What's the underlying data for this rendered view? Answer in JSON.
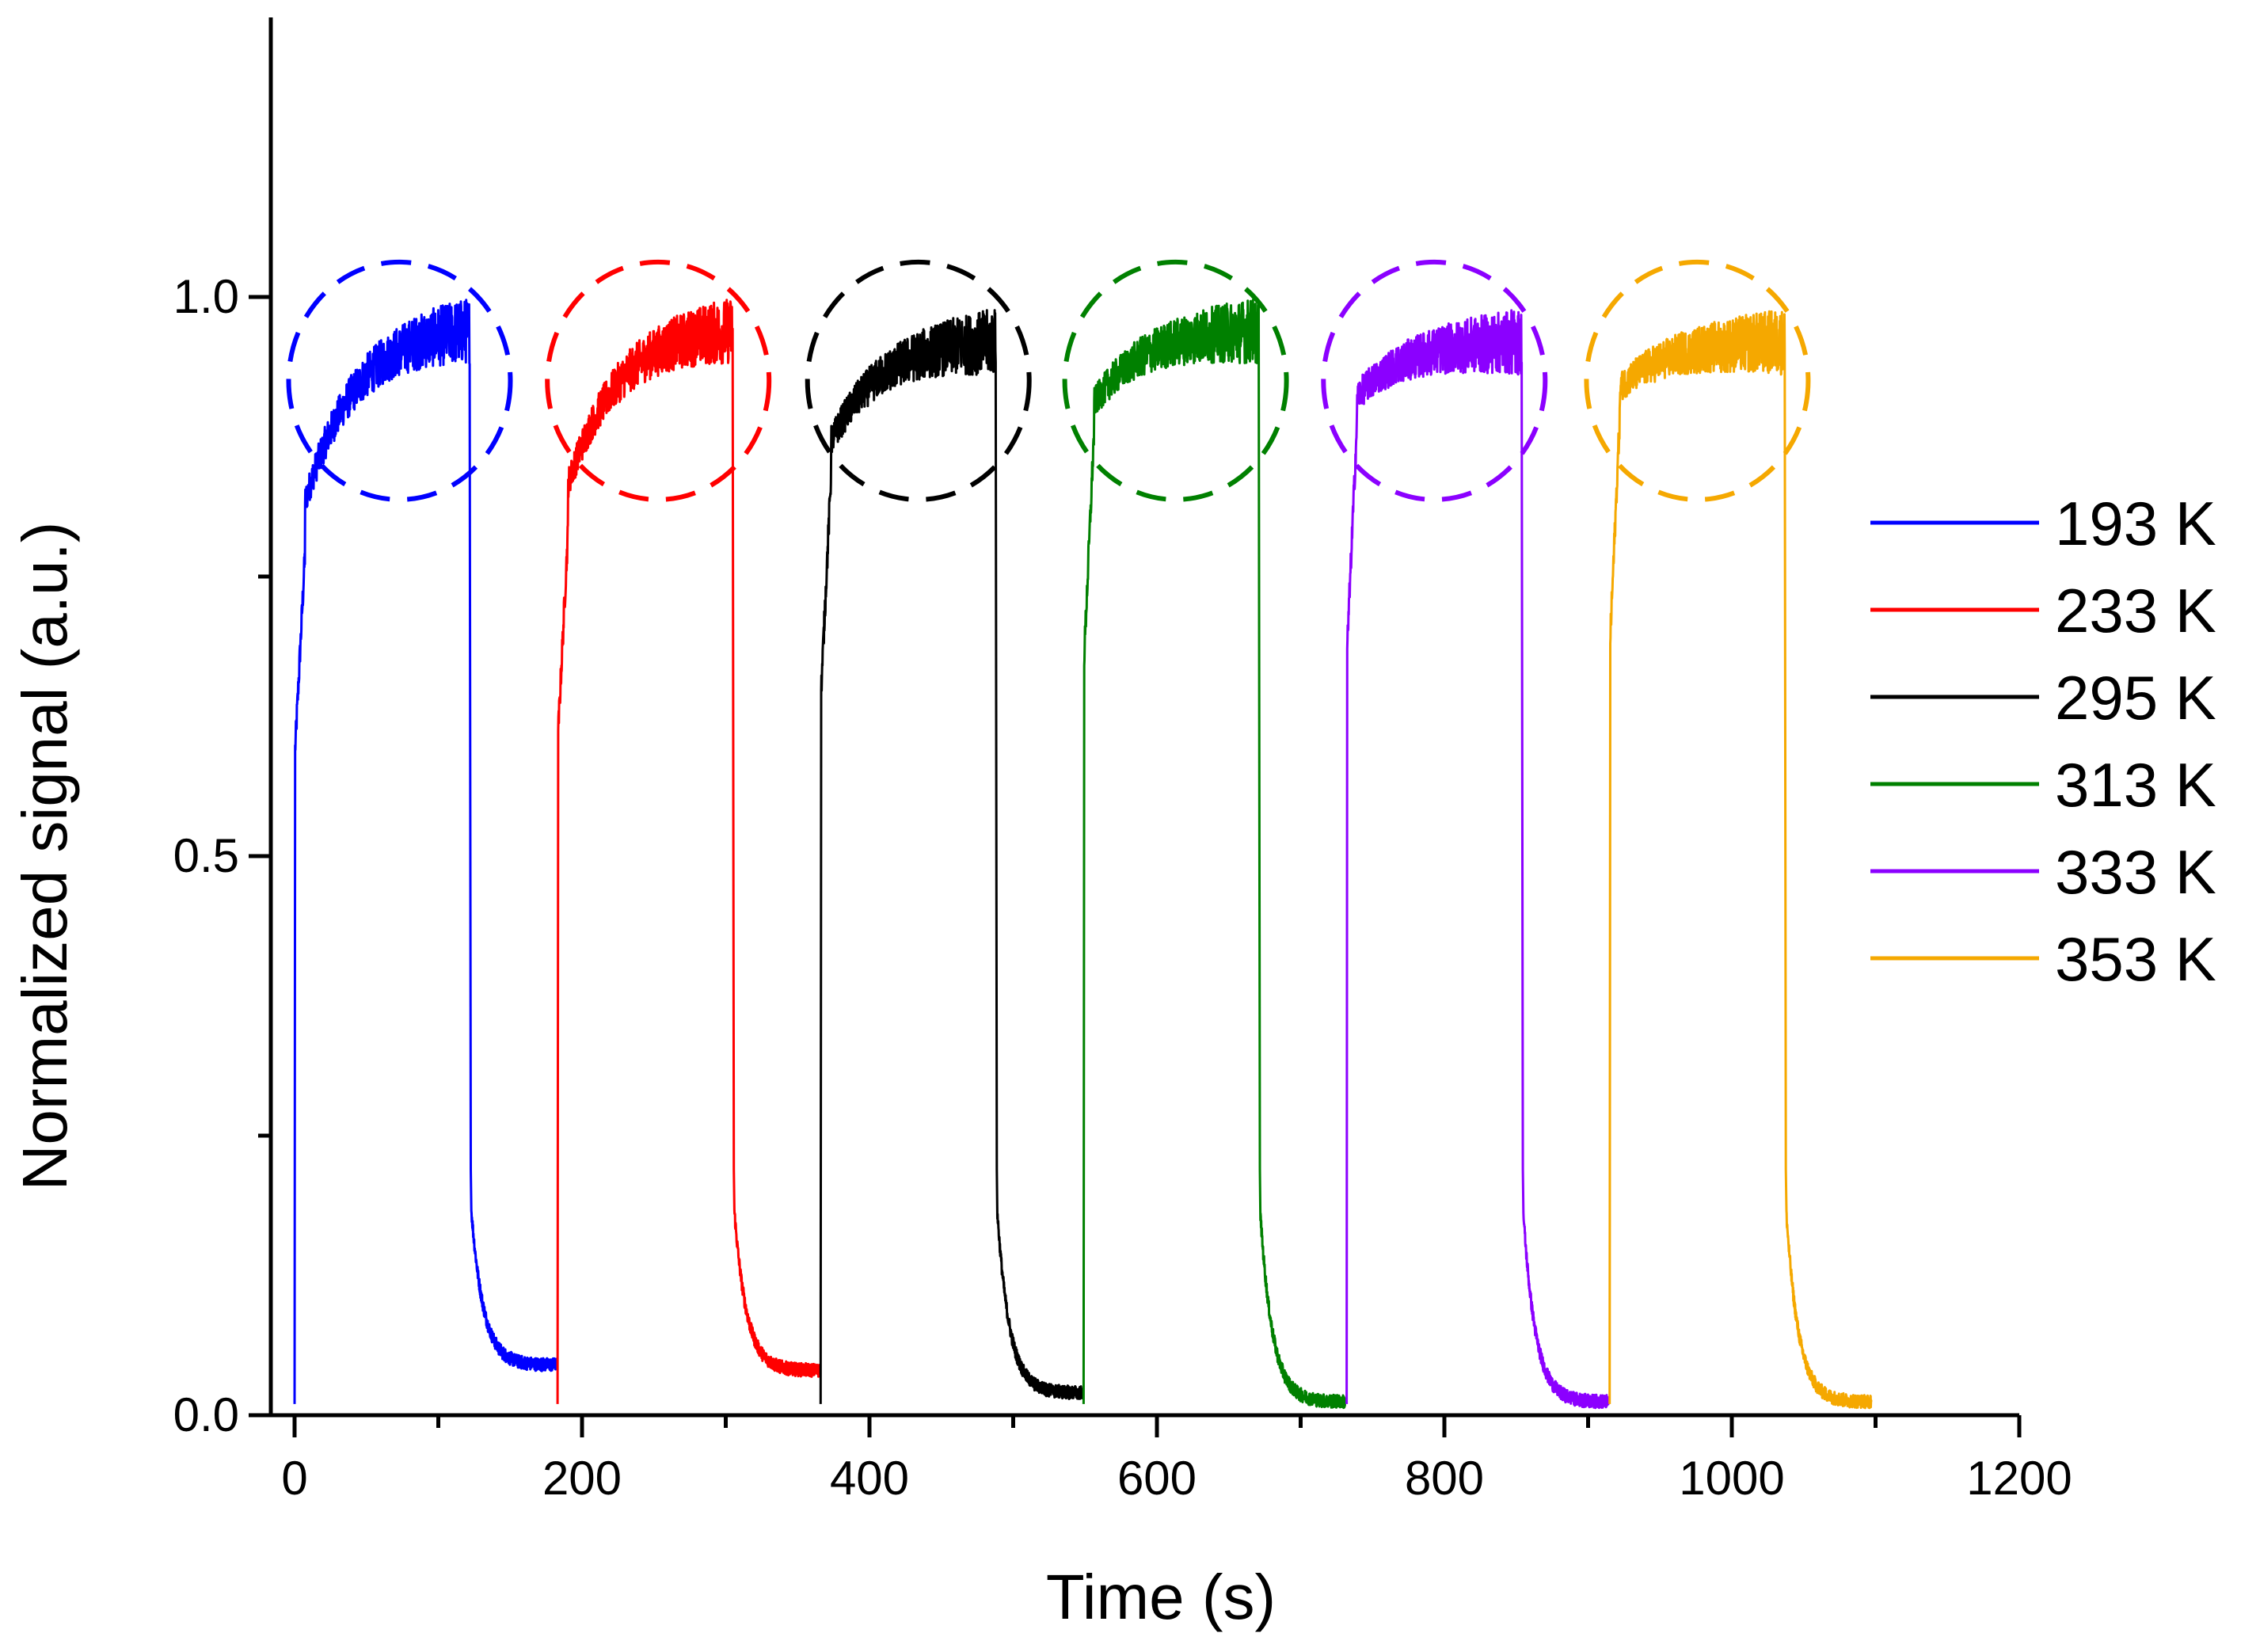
{
  "chart_data": {
    "type": "line",
    "title": "",
    "xlabel": "Time (s)",
    "ylabel": "Normalized signal (a.u.)",
    "xlim": [
      -15,
      1200
    ],
    "ylim": [
      0,
      1.26
    ],
    "x_ticks": [
      0,
      200,
      400,
      600,
      800,
      1000,
      1200
    ],
    "x_tick_labels": [
      "0",
      "200",
      "400",
      "600",
      "800",
      "1000",
      "1200"
    ],
    "x_minor_ticks": [
      100,
      300,
      500,
      700,
      900,
      1100
    ],
    "y_ticks": [
      0.0,
      0.5,
      1.0
    ],
    "y_tick_labels": [
      "0.0",
      "0.5",
      "1.0"
    ],
    "y_minor_ticks": [
      0.25,
      0.75
    ],
    "legend_position": "right",
    "series": [
      {
        "name": "193 K",
        "color": "#0000ff",
        "on_time": 0,
        "off_time": 122,
        "end_time": 182,
        "rise_start": 0.78,
        "plateau_end": 0.97,
        "tail_end": 0.045,
        "circle_center": [
          73,
          0.925
        ]
      },
      {
        "name": "233 K",
        "color": "#ff0000",
        "on_time": 183,
        "off_time": 305,
        "end_time": 365,
        "rise_start": 0.8,
        "plateau_end": 0.97,
        "tail_end": 0.04,
        "circle_center": [
          253,
          0.925
        ]
      },
      {
        "name": "295 K",
        "color": "#000000",
        "on_time": 366,
        "off_time": 488,
        "end_time": 548,
        "rise_start": 0.85,
        "plateau_end": 0.96,
        "tail_end": 0.02,
        "circle_center": [
          434,
          0.925
        ]
      },
      {
        "name": "313 K",
        "color": "#008000",
        "on_time": 549,
        "off_time": 671,
        "end_time": 731,
        "rise_start": 0.89,
        "plateau_end": 0.97,
        "tail_end": 0.012,
        "circle_center": [
          613,
          0.925
        ]
      },
      {
        "name": "333 K",
        "color": "#8b00ff",
        "on_time": 732,
        "off_time": 854,
        "end_time": 914,
        "rise_start": 0.9,
        "plateau_end": 0.96,
        "tail_end": 0.012,
        "circle_center": [
          793,
          0.925
        ]
      },
      {
        "name": "353 K",
        "color": "#f5a800",
        "on_time": 915,
        "off_time": 1037,
        "end_time": 1097,
        "rise_start": 0.91,
        "plateau_end": 0.96,
        "tail_end": 0.012,
        "circle_center": [
          976,
          0.925
        ]
      }
    ]
  }
}
